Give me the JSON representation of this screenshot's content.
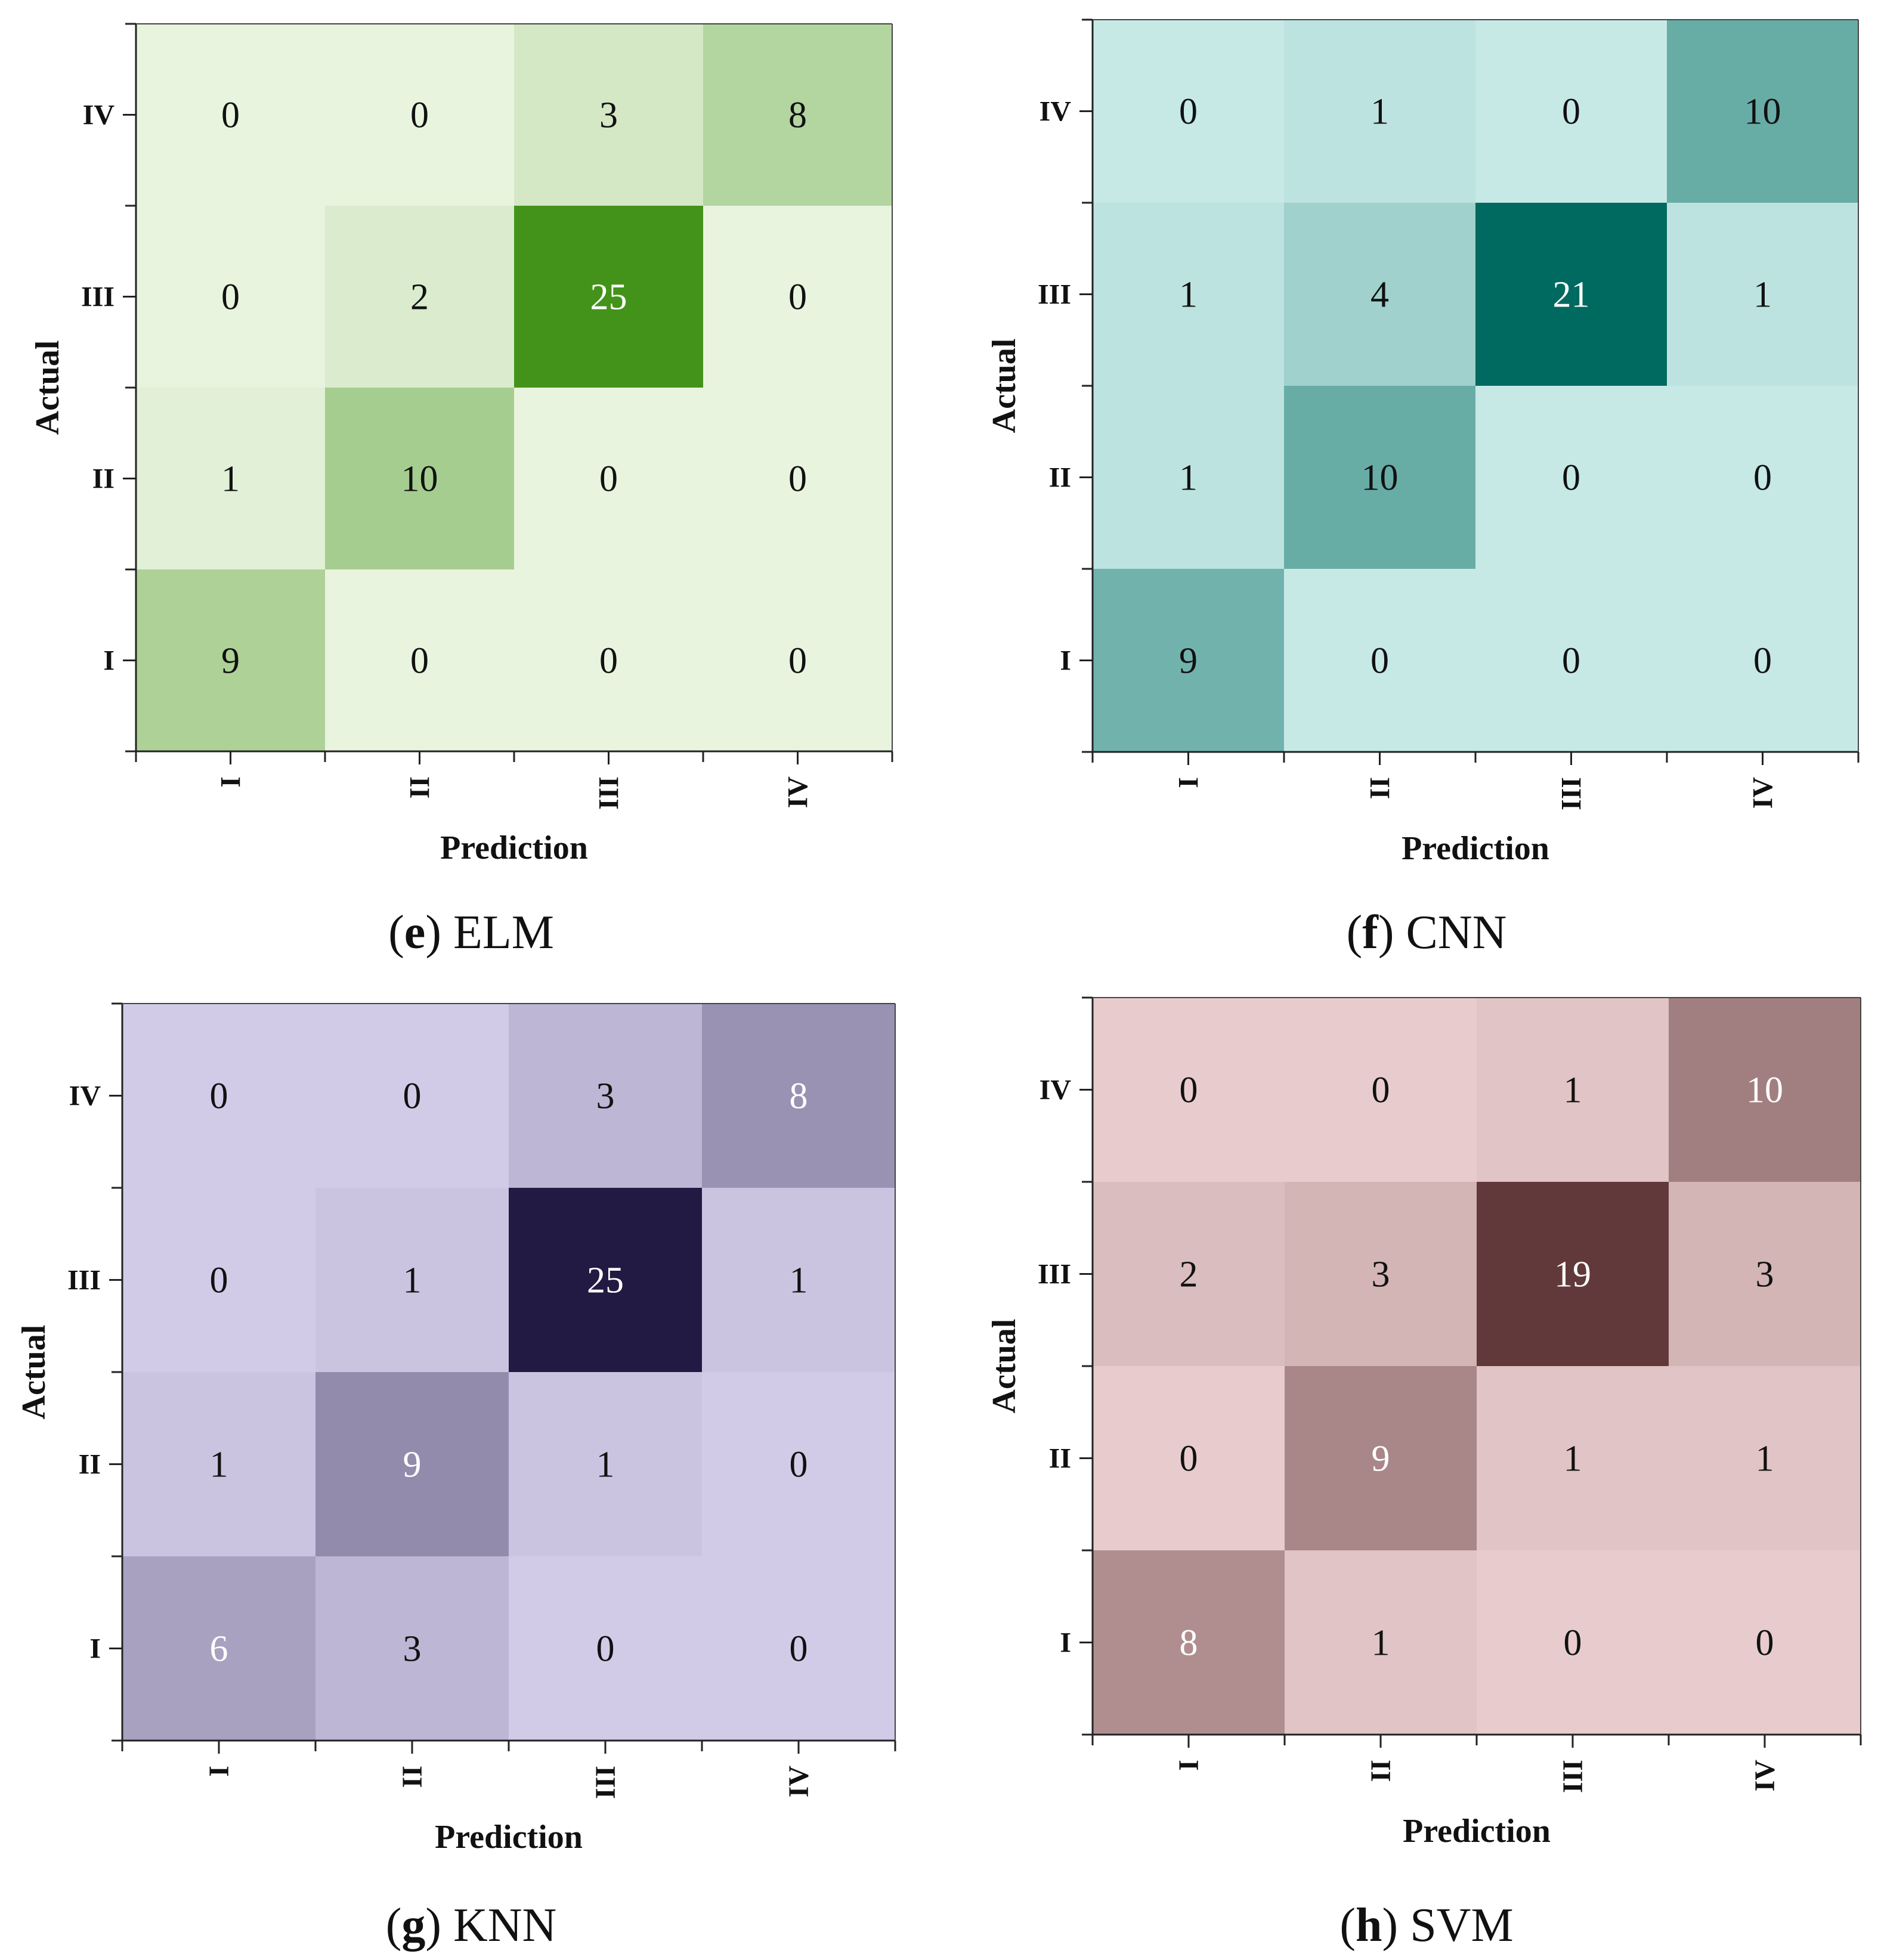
{
  "figure": {
    "caption_open": "(",
    "caption_close": ")"
  },
  "chart_data": [
    {
      "type": "heatmap",
      "panel_letter": "e",
      "panel_title": "ELM",
      "xlabel": "Prediction",
      "ylabel": "Actual",
      "x_categories": [
        "I",
        "II",
        "III",
        "IV"
      ],
      "y_categories": [
        "I",
        "II",
        "III",
        "IV"
      ],
      "matrix_rows_top_to_bottom": [
        {
          "actual": "IV",
          "values": [
            0,
            0,
            3,
            8
          ]
        },
        {
          "actual": "III",
          "values": [
            0,
            2,
            25,
            0
          ]
        },
        {
          "actual": "II",
          "values": [
            1,
            10,
            0,
            0
          ]
        },
        {
          "actual": "I",
          "values": [
            9,
            0,
            0,
            0
          ]
        }
      ],
      "colormap": {
        "low": "#e8f4de",
        "high": "#43931a",
        "vmax": 25
      },
      "light_text_threshold": 20
    },
    {
      "type": "heatmap",
      "panel_letter": "f",
      "panel_title": "CNN",
      "xlabel": "Prediction",
      "ylabel": "Actual",
      "x_categories": [
        "I",
        "II",
        "III",
        "IV"
      ],
      "y_categories": [
        "I",
        "II",
        "III",
        "IV"
      ],
      "matrix_rows_top_to_bottom": [
        {
          "actual": "IV",
          "values": [
            0,
            1,
            0,
            10
          ]
        },
        {
          "actual": "III",
          "values": [
            1,
            4,
            21,
            1
          ]
        },
        {
          "actual": "II",
          "values": [
            1,
            10,
            0,
            0
          ]
        },
        {
          "actual": "I",
          "values": [
            9,
            0,
            0,
            0
          ]
        }
      ],
      "colormap": {
        "low": "#c6e9e6",
        "high": "#006960",
        "vmax": 21
      },
      "light_text_threshold": 20
    },
    {
      "type": "heatmap",
      "panel_letter": "g",
      "panel_title": "KNN",
      "xlabel": "Prediction",
      "ylabel": "Actual",
      "x_categories": [
        "I",
        "II",
        "III",
        "IV"
      ],
      "y_categories": [
        "I",
        "II",
        "III",
        "IV"
      ],
      "matrix_rows_top_to_bottom": [
        {
          "actual": "IV",
          "values": [
            0,
            0,
            3,
            8
          ]
        },
        {
          "actual": "III",
          "values": [
            0,
            1,
            25,
            1
          ]
        },
        {
          "actual": "II",
          "values": [
            1,
            9,
            1,
            0
          ]
        },
        {
          "actual": "I",
          "values": [
            6,
            3,
            0,
            0
          ]
        }
      ],
      "colormap": {
        "low": "#d2cbe8",
        "high": "#221a42",
        "vmax": 25
      },
      "light_text_threshold": 6
    },
    {
      "type": "heatmap",
      "panel_letter": "h",
      "panel_title": "SVM",
      "xlabel": "Prediction",
      "ylabel": "Actual",
      "x_categories": [
        "I",
        "II",
        "III",
        "IV"
      ],
      "y_categories": [
        "I",
        "II",
        "III",
        "IV"
      ],
      "matrix_rows_top_to_bottom": [
        {
          "actual": "IV",
          "values": [
            0,
            0,
            1,
            10
          ]
        },
        {
          "actual": "III",
          "values": [
            2,
            3,
            19,
            3
          ]
        },
        {
          "actual": "II",
          "values": [
            0,
            9,
            1,
            1
          ]
        },
        {
          "actual": "I",
          "values": [
            8,
            1,
            0,
            0
          ]
        }
      ],
      "colormap": {
        "low": "#e8cccd",
        "high": "#62393a",
        "vmax": 19
      },
      "light_text_threshold": 8
    }
  ]
}
